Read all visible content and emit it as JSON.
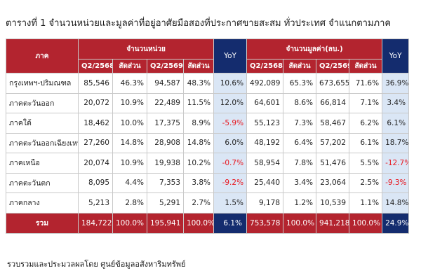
{
  "title": "ตารางที่ 1 จำนวนหน่วยและมูลค่าที่อยู่อาศัยมือสองที่ประกาศขายสะสม ทั่วประเทศ จำแนกตามภาค",
  "header": {
    "region": "ภาค",
    "units_group": "จำนวนหน่วย",
    "value_group": "จำนวนมูลค่า(ลบ.)",
    "yoy": "YoY",
    "q1": "Q2/2568",
    "share": "สัดส่วน",
    "q2": "Q2/2569"
  },
  "rows": [
    {
      "region": "กรุงเทพฯ-ปริมณฑล",
      "u1": "85,546",
      "s1": "46.3%",
      "u2": "94,587",
      "s2": "48.3%",
      "uyoy": "10.6%",
      "v1": "492,089",
      "vs1": "65.3%",
      "v2": "673,655",
      "vs2": "71.6%",
      "vyoy": "36.9%"
    },
    {
      "region": "ภาคตะวันออก",
      "u1": "20,072",
      "s1": "10.9%",
      "u2": "22,489",
      "s2": "11.5%",
      "uyoy": "12.0%",
      "v1": "64,601",
      "vs1": "8.6%",
      "v2": "66,814",
      "vs2": "7.1%",
      "vyoy": "3.4%"
    },
    {
      "region": "ภาคใต้",
      "u1": "18,462",
      "s1": "10.0%",
      "u2": "17,375",
      "s2": "8.9%",
      "uyoy": "-5.9%",
      "v1": "55,123",
      "vs1": "7.3%",
      "v2": "58,467",
      "vs2": "6.2%",
      "vyoy": "6.1%"
    },
    {
      "region": "ภาคตะวันออกเฉียงเหนือ",
      "u1": "27,260",
      "s1": "14.8%",
      "u2": "28,908",
      "s2": "14.8%",
      "uyoy": "6.0%",
      "v1": "48,192",
      "vs1": "6.4%",
      "v2": "57,202",
      "vs2": "6.1%",
      "vyoy": "18.7%"
    },
    {
      "region": "ภาคเหนือ",
      "u1": "20,074",
      "s1": "10.9%",
      "u2": "19,938",
      "s2": "10.2%",
      "uyoy": "-0.7%",
      "v1": "58,954",
      "vs1": "7.8%",
      "v2": "51,476",
      "vs2": "5.5%",
      "vyoy": "-12.7%"
    },
    {
      "region": "ภาคตะวันตก",
      "u1": "8,095",
      "s1": "4.4%",
      "u2": "7,353",
      "s2": "3.8%",
      "uyoy": "-9.2%",
      "v1": "25,440",
      "vs1": "3.4%",
      "v2": "23,064",
      "vs2": "2.5%",
      "vyoy": "-9.3%"
    },
    {
      "region": "ภาคกลาง",
      "u1": "5,213",
      "s1": "2.8%",
      "u2": "5,291",
      "s2": "2.7%",
      "uyoy": "1.5%",
      "v1": "9,178",
      "vs1": "1.2%",
      "v2": "10,539",
      "vs2": "1.1%",
      "vyoy": "14.8%"
    }
  ],
  "total": {
    "region": "รวม",
    "u1": "184,722",
    "s1": "100.0%",
    "u2": "195,941",
    "s2": "100.0%",
    "uyoy": "6.1%",
    "v1": "753,578",
    "vs1": "100.0%",
    "v2": "941,218",
    "vs2": "100.0%",
    "vyoy": "24.9%"
  },
  "footnote": "รวบรวมและประมวลผลโดย ศูนย์ข้อมูลอสังหาริมทรัพย์",
  "colors": {
    "header_red": "#b3242f",
    "header_navy": "#142c6e",
    "yoy_fill": "#dae6f5",
    "negative": "#e8141c"
  }
}
